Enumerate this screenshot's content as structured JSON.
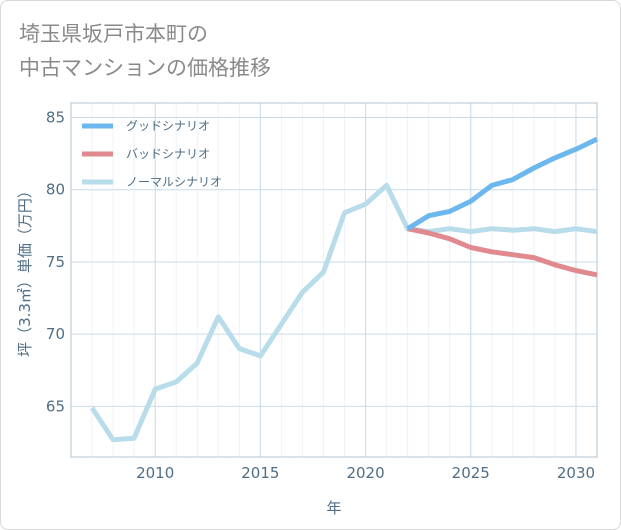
{
  "title_lines": [
    "埼玉県坂戸市本町の",
    "中古マンションの価格推移"
  ],
  "chart_data": {
    "type": "line",
    "title": "埼玉県坂戸市本町の中古マンションの価格推移",
    "xlabel": "年",
    "ylabel": "坪（3.3㎡）単価（万円）",
    "xlim": [
      2006,
      2031
    ],
    "ylim": [
      61.5,
      86
    ],
    "xticks": [
      2010,
      2015,
      2020,
      2025,
      2030
    ],
    "yticks": [
      65,
      70,
      75,
      80,
      85
    ],
    "grid": true,
    "legend_position": "top-left",
    "series": [
      {
        "name": "グッドシナリオ",
        "color": "#6cb8ee",
        "x": [
          2022,
          2023,
          2024,
          2025,
          2026,
          2027,
          2028,
          2029,
          2030,
          2031
        ],
        "values": [
          77.3,
          78.2,
          78.5,
          79.2,
          80.3,
          80.7,
          81.5,
          82.2,
          82.8,
          83.5
        ]
      },
      {
        "name": "バッドシナリオ",
        "color": "#e08a8f",
        "x": [
          2022,
          2023,
          2024,
          2025,
          2026,
          2027,
          2028,
          2029,
          2030,
          2031
        ],
        "values": [
          77.3,
          77.0,
          76.6,
          76.0,
          75.7,
          75.5,
          75.3,
          74.8,
          74.4,
          74.1
        ]
      },
      {
        "name": "ノーマルシナリオ",
        "color": "#b9dceb",
        "x": [
          2007,
          2008,
          2009,
          2010,
          2011,
          2012,
          2013,
          2014,
          2015,
          2016,
          2017,
          2018,
          2019,
          2020,
          2021,
          2022,
          2023,
          2024,
          2025,
          2026,
          2027,
          2028,
          2029,
          2030,
          2031
        ],
        "values": [
          64.9,
          62.7,
          62.8,
          66.2,
          66.7,
          68.0,
          71.2,
          69.0,
          68.5,
          70.7,
          72.9,
          74.3,
          78.4,
          79.0,
          80.3,
          77.3,
          77.1,
          77.3,
          77.1,
          77.3,
          77.2,
          77.3,
          77.1,
          77.3,
          77.1
        ]
      }
    ]
  }
}
